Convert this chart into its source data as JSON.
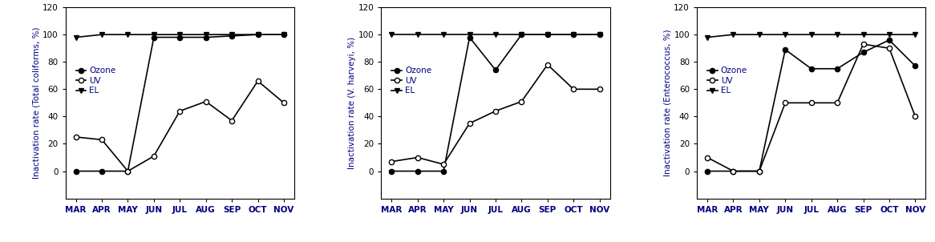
{
  "months": [
    "MAR",
    "APR",
    "MAY",
    "JUN",
    "JUL",
    "AUG",
    "SEP",
    "OCT",
    "NOV"
  ],
  "chart1": {
    "ylabel": "Inactivation rate (Total coliforms, %)",
    "ozone": [
      0,
      0,
      0,
      98,
      98,
      98,
      99,
      100,
      100
    ],
    "uv": [
      25,
      23,
      0,
      11,
      44,
      51,
      37,
      66,
      50
    ],
    "el": [
      98,
      100,
      100,
      100,
      100,
      100,
      100,
      100,
      100
    ]
  },
  "chart2": {
    "ylabel": "Inactivation rate (V. harveyi, %)",
    "ozone": [
      0,
      0,
      0,
      98,
      74,
      100,
      100,
      100,
      100
    ],
    "uv": [
      7,
      10,
      5,
      35,
      44,
      51,
      78,
      60,
      60
    ],
    "el": [
      100,
      100,
      100,
      100,
      100,
      100,
      100,
      100,
      100
    ]
  },
  "chart3": {
    "ylabel": "Inactivation rate (Enterococcus, %)",
    "ozone": [
      0,
      0,
      0,
      89,
      75,
      75,
      87,
      96,
      77
    ],
    "uv": [
      10,
      0,
      0,
      50,
      50,
      50,
      93,
      90,
      40
    ],
    "el": [
      98,
      100,
      100,
      100,
      100,
      100,
      100,
      100,
      100
    ]
  },
  "ylim": [
    -20,
    120
  ],
  "yticks": [
    0,
    20,
    40,
    60,
    80,
    100,
    120
  ],
  "legend_labels": [
    "Ozone",
    "UV",
    "EL"
  ],
  "legend_text_color": "#000080",
  "ylabel_color": "#000080",
  "xtick_color": "#000080",
  "line_color": "#000000",
  "tick_labelsize": 7.5,
  "ylabel_fontsize": 7.5,
  "legend_fontsize": 7.5,
  "linewidth": 1.2,
  "markersize": 4.5
}
